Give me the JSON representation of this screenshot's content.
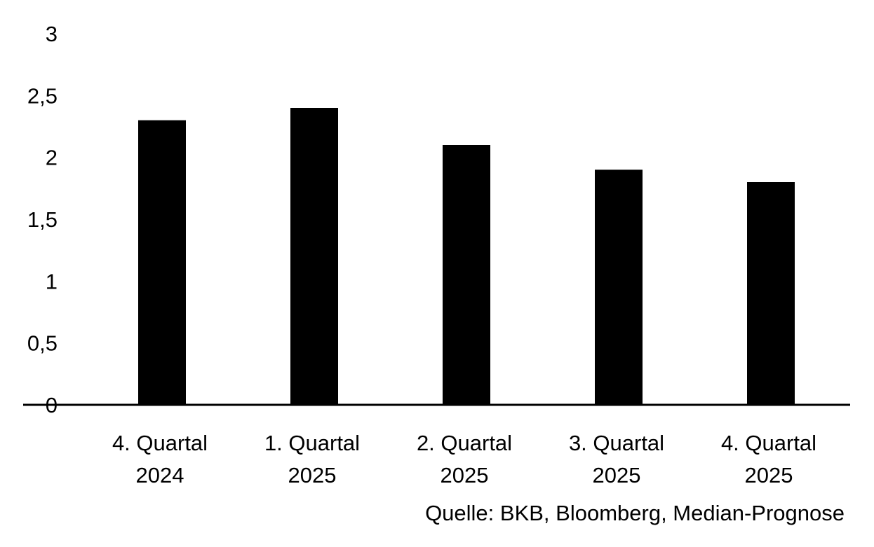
{
  "chart_data": {
    "type": "bar",
    "categories": [
      [
        "4. Quartal",
        "2024"
      ],
      [
        "1. Quartal",
        "2025"
      ],
      [
        "2. Quartal",
        "2025"
      ],
      [
        "3. Quartal",
        "2025"
      ],
      [
        "4. Quartal",
        "2025"
      ]
    ],
    "values": [
      2.3,
      2.4,
      2.1,
      1.9,
      1.8
    ],
    "yticks": [
      0,
      0.5,
      1,
      1.5,
      2,
      2.5,
      3
    ],
    "ytick_labels": [
      "0",
      "0,5",
      "1",
      "1,5",
      "2",
      "2,5",
      "3"
    ],
    "ylim": [
      0,
      3
    ],
    "bar_color": "#000000",
    "axis_color": "#000000",
    "grid": false,
    "legend": "none"
  },
  "source": "Quelle: BKB, Bloomberg, Median-Prognose"
}
